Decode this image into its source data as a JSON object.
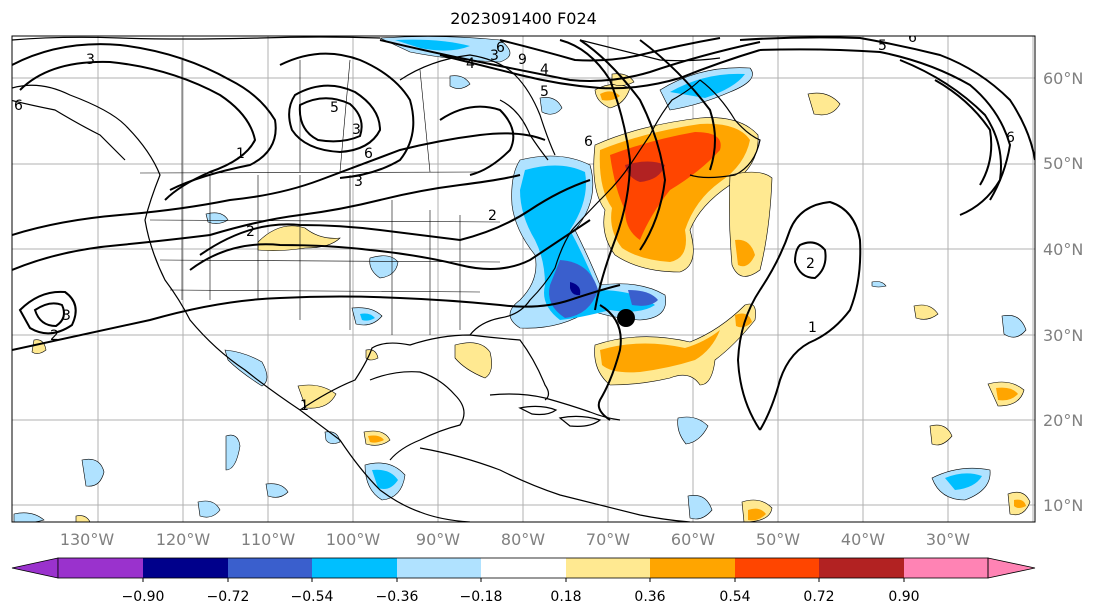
{
  "title": "2023091400 F024",
  "map": {
    "longitude_labels": [
      "130°W",
      "120°W",
      "110°W",
      "100°W",
      "90°W",
      "80°W",
      "70°W",
      "60°W",
      "50°W",
      "40°W",
      "30°W"
    ],
    "latitude_labels": [
      "60°N",
      "50°N",
      "40°N",
      "30°N",
      "20°N",
      "10°N"
    ],
    "contour_labels": [
      "6",
      "3",
      "5",
      "3",
      "3",
      "2",
      "6",
      "4",
      "3",
      "9",
      "6",
      "4",
      "5",
      "6",
      "1",
      "5",
      "6",
      "2",
      "3",
      "2",
      "2",
      "1",
      "1",
      "6"
    ],
    "storm_marker": "black-dot"
  },
  "colorbar": {
    "ticks": [
      "−0.90",
      "−0.72",
      "−0.54",
      "−0.36",
      "−0.18",
      "0.18",
      "0.36",
      "0.54",
      "0.72",
      "0.90"
    ],
    "colors": [
      "#9a32cd",
      "#00008b",
      "#3a5fcd",
      "#00bfff",
      "#b0e2ff",
      "#ffffff",
      "#ffe991",
      "#ffa500",
      "#ff4500",
      "#b22222",
      "#ff83b4"
    ],
    "extend": "both"
  }
}
